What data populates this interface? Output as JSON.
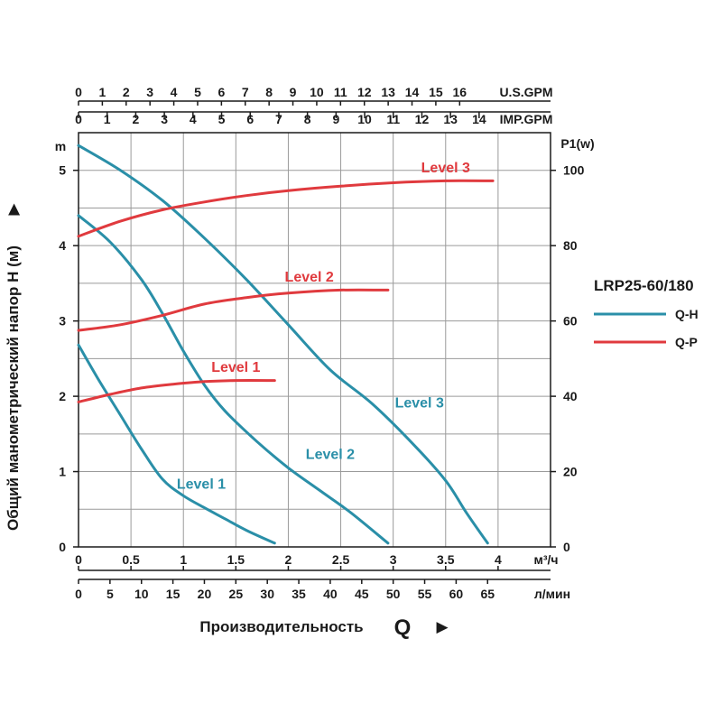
{
  "chart_data": {
    "type": "line",
    "model": "LRP25-60/180",
    "legend": [
      {
        "name": "Q-H",
        "color": "#2a8fa8"
      },
      {
        "name": "Q-P",
        "color": "#e03a3e"
      }
    ],
    "ylabel": "Общий манометрический напор H (м)",
    "y_unit": "m",
    "ylim": [
      0,
      5.5
    ],
    "y_ticks": [
      "0",
      "1",
      "2",
      "3",
      "4",
      "5"
    ],
    "y2_unit": "P1(w)",
    "y2lim": [
      0,
      110
    ],
    "y2_ticks": [
      "0",
      "20",
      "40",
      "60",
      "80",
      "100"
    ],
    "xlabel": "Производительность",
    "xlabel_symbol": "Q",
    "xlabel_arrow": "▶",
    "ylabel_arrow": "▶",
    "xlim": [
      0,
      4.5
    ],
    "x_m3h_unit": "м³/ч",
    "x_m3h_ticks": [
      "0",
      "0.5",
      "1",
      "1.5",
      "2",
      "2.5",
      "3",
      "3.5",
      "4"
    ],
    "x_lmin_unit": "л/мин",
    "x_lmin_ticks": [
      "0",
      "5",
      "10",
      "15",
      "20",
      "25",
      "30",
      "35",
      "40",
      "45",
      "50",
      "55",
      "60",
      "65"
    ],
    "x_usgpm_unit": "U.S.GPM",
    "x_usgpm_ticks": [
      "0",
      "1",
      "2",
      "3",
      "4",
      "5",
      "6",
      "7",
      "8",
      "9",
      "10",
      "11",
      "12",
      "13",
      "14",
      "15",
      "16"
    ],
    "x_impgpm_unit": "IMP.GPM",
    "x_impgpm_ticks": [
      "0",
      "1",
      "2",
      "3",
      "4",
      "5",
      "6",
      "7",
      "8",
      "9",
      "10",
      "11",
      "12",
      "13",
      "14"
    ],
    "series_qh": [
      {
        "name": "Level 1",
        "x": [
          0,
          0.2,
          0.4,
          0.6,
          0.8,
          1.0,
          1.2,
          1.4,
          1.6,
          1.87
        ],
        "y": [
          2.68,
          2.2,
          1.75,
          1.3,
          0.9,
          0.68,
          0.52,
          0.37,
          0.22,
          0.05
        ]
      },
      {
        "name": "Level 2",
        "x": [
          0,
          0.3,
          0.6,
          0.8,
          1.0,
          1.2,
          1.4,
          1.7,
          2.0,
          2.3,
          2.6,
          2.95
        ],
        "y": [
          4.4,
          4.05,
          3.55,
          3.1,
          2.6,
          2.15,
          1.8,
          1.4,
          1.05,
          0.75,
          0.45,
          0.05
        ]
      },
      {
        "name": "Level 3",
        "x": [
          0,
          0.4,
          0.8,
          1.2,
          1.6,
          2.0,
          2.4,
          2.8,
          3.2,
          3.5,
          3.7,
          3.9
        ],
        "y": [
          5.33,
          5.0,
          4.6,
          4.1,
          3.55,
          2.95,
          2.35,
          1.9,
          1.35,
          0.88,
          0.45,
          0.05
        ]
      }
    ],
    "series_qp": [
      {
        "name": "Level 1",
        "x": [
          0,
          0.3,
          0.6,
          0.9,
          1.2,
          1.5,
          1.87
        ],
        "y": [
          38.5,
          40.5,
          42.2,
          43.2,
          43.9,
          44.2,
          44.2
        ]
      },
      {
        "name": "Level 2",
        "x": [
          0,
          0.4,
          0.8,
          1.2,
          1.6,
          2.0,
          2.5,
          2.95
        ],
        "y": [
          57.5,
          59.0,
          61.5,
          64.5,
          66.2,
          67.4,
          68.2,
          68.2
        ]
      },
      {
        "name": "Level 3",
        "x": [
          0,
          0.4,
          0.8,
          1.2,
          1.6,
          2.0,
          2.5,
          3.0,
          3.5,
          3.95
        ],
        "y": [
          82.5,
          86.5,
          89.5,
          91.6,
          93.3,
          94.6,
          95.8,
          96.7,
          97.2,
          97.2
        ]
      }
    ]
  }
}
